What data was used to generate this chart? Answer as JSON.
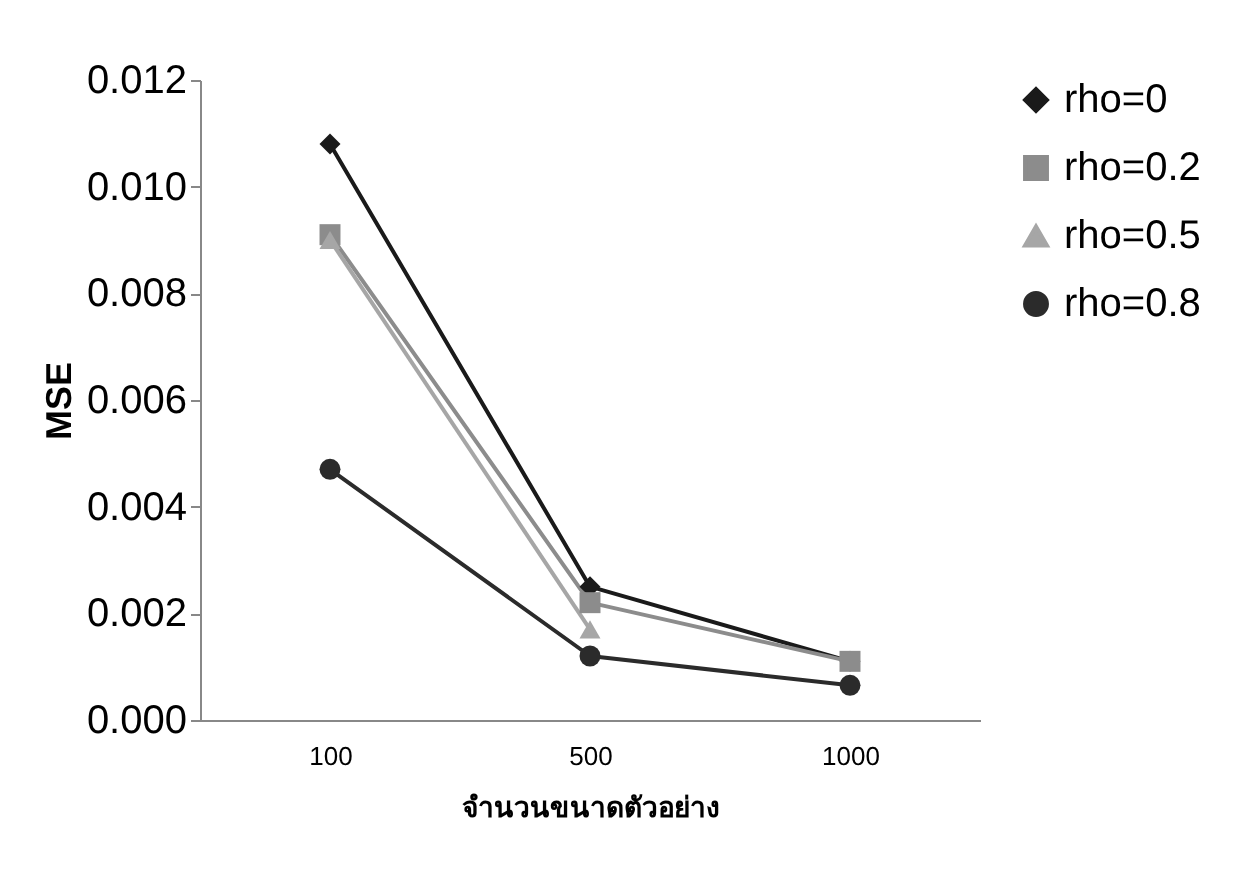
{
  "chart_data": {
    "type": "line",
    "xlabel": "จำนวนขนาดตัวอย่าง",
    "ylabel": "MSE",
    "categories": [
      "100",
      "500",
      "1000"
    ],
    "series": [
      {
        "name": "rho=0",
        "color": "#1a1a1a",
        "marker": "diamond",
        "values": [
          0.0108,
          0.0025,
          0.0011
        ]
      },
      {
        "name": "rho=0.2",
        "color": "#8c8c8c",
        "marker": "square",
        "values": [
          0.0091,
          0.0022,
          0.0011
        ]
      },
      {
        "name": "rho=0.5",
        "color": "#a6a6a6",
        "marker": "triangle",
        "values": [
          0.009,
          0.0017,
          null
        ]
      },
      {
        "name": "rho=0.8",
        "color": "#2b2b2b",
        "marker": "circle",
        "values": [
          0.0047,
          0.0012,
          0.00065
        ]
      }
    ],
    "ylim": [
      0,
      0.012
    ],
    "yticks": [
      {
        "value": 0,
        "label": "0.000"
      },
      {
        "value": 0.002,
        "label": "0.002"
      },
      {
        "value": 0.004,
        "label": "0.004"
      },
      {
        "value": 0.006,
        "label": "0.006"
      },
      {
        "value": 0.008,
        "label": "0.008"
      },
      {
        "value": 0.01,
        "label": "0.010"
      },
      {
        "value": 0.012,
        "label": "0.012"
      }
    ],
    "grid": false,
    "legend": "right"
  }
}
